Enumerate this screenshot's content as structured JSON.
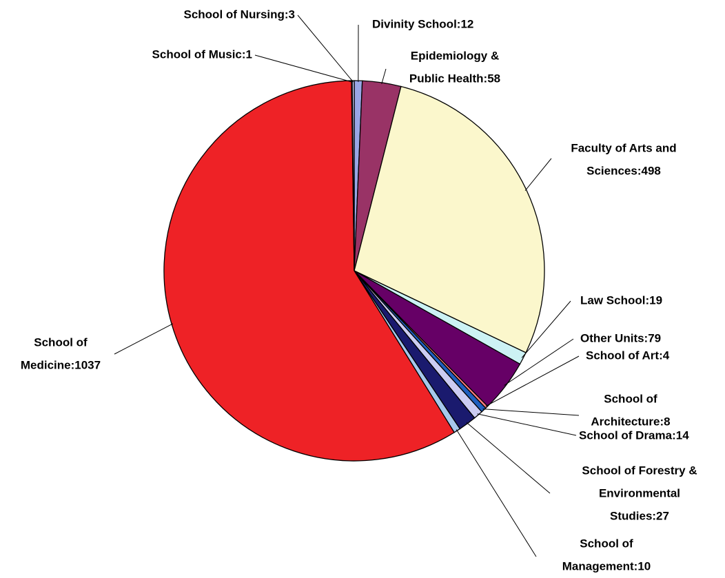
{
  "chart_data": {
    "type": "pie",
    "values": [
      12,
      58,
      498,
      19,
      79,
      4,
      8,
      14,
      27,
      10,
      1037,
      1,
      3
    ],
    "value_labels": [
      [
        "Divinity School:12"
      ],
      [
        "Epidemiology &",
        "Public Health:58"
      ],
      [
        "Faculty of Arts and",
        "Sciences:498"
      ],
      [
        "Law School:19"
      ],
      [
        "Other Units:79"
      ],
      [
        "School of Art:4"
      ],
      [
        "School of",
        "Architecture:8"
      ],
      [
        "School of Drama:14"
      ],
      [
        "School of Forestry &",
        "Environmental",
        "Studies:27"
      ],
      [
        "School of",
        "Management:10"
      ],
      [
        "School of",
        "Medicine:1037"
      ],
      [
        "School of Music:1"
      ],
      [
        "School of Nursing:3"
      ]
    ],
    "colors": [
      "#9aa6e6",
      "#993366",
      "#fbf7cc",
      "#ccf2f4",
      "#660066",
      "#ff7f7f",
      "#1f5fbf",
      "#ccccf2",
      "#1a1a6e",
      "#a6c8ec",
      "#ee2226",
      "#7f7fbf",
      "#c8c8f0"
    ]
  }
}
